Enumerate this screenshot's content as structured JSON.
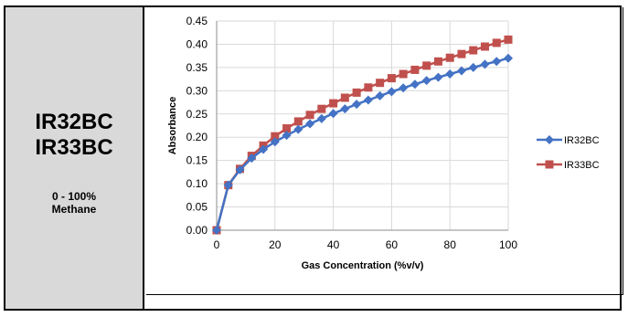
{
  "panel": {
    "model_line1": "IR32BC",
    "model_line2": "IR33BC",
    "range_line1": "0 - 100%",
    "range_line2": "Methane"
  },
  "chart_data": {
    "type": "line",
    "title": "",
    "xlabel": "Gas Concentration (%v/v)",
    "ylabel": "Absorbance",
    "xlim": [
      0,
      100
    ],
    "ylim": [
      0,
      0.45
    ],
    "xticks": [
      0,
      20,
      40,
      60,
      80,
      100
    ],
    "yticks": [
      0.0,
      0.05,
      0.1,
      0.15,
      0.2,
      0.25,
      0.3,
      0.35,
      0.4,
      0.45
    ],
    "grid": true,
    "legend_position": "right",
    "x": [
      0,
      4,
      8,
      12,
      16,
      20,
      24,
      28,
      32,
      36,
      40,
      44,
      48,
      52,
      56,
      60,
      64,
      68,
      72,
      76,
      80,
      84,
      88,
      92,
      96,
      100
    ],
    "series": [
      {
        "name": "IR32BC",
        "color": "#4472c4",
        "marker": "diamond",
        "values": [
          0.0,
          0.097,
          0.13,
          0.155,
          0.174,
          0.19,
          0.204,
          0.217,
          0.229,
          0.24,
          0.251,
          0.261,
          0.271,
          0.28,
          0.289,
          0.298,
          0.306,
          0.314,
          0.322,
          0.329,
          0.336,
          0.343,
          0.35,
          0.357,
          0.363,
          0.37
        ]
      },
      {
        "name": "IR33BC",
        "color": "#c0504d",
        "marker": "square",
        "values": [
          0.0,
          0.097,
          0.132,
          0.16,
          0.182,
          0.202,
          0.219,
          0.234,
          0.248,
          0.261,
          0.273,
          0.285,
          0.296,
          0.307,
          0.317,
          0.327,
          0.336,
          0.345,
          0.354,
          0.363,
          0.371,
          0.379,
          0.387,
          0.395,
          0.403,
          0.41
        ]
      }
    ]
  }
}
